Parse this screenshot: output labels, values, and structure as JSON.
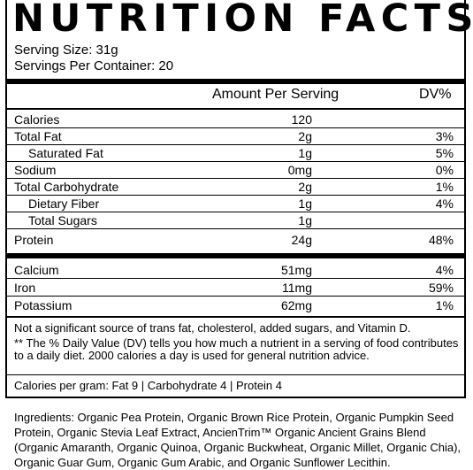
{
  "title": "NUTRITION FACTS",
  "serving_size": "Serving Size: 31g",
  "servings_per_container": "Servings Per Container: 20",
  "header": {
    "amount": "Amount Per Serving",
    "dv": "DV%"
  },
  "nutrients": [
    {
      "name": "Calories",
      "amount": "120",
      "dv": ""
    },
    {
      "name": "Total Fat",
      "amount": "2g",
      "dv": "3%"
    },
    {
      "name": "Saturated Fat",
      "amount": "1g",
      "dv": "5%"
    },
    {
      "name": "Sodium",
      "amount": "0mg",
      "dv": "0%"
    },
    {
      "name": "Total Carbohydrate",
      "amount": "2g",
      "dv": "1%"
    },
    {
      "name": "Dietary Fiber",
      "amount": "1g",
      "dv": "4%"
    },
    {
      "name": "Total Sugars",
      "amount": "1g",
      "dv": ""
    },
    {
      "name": "Protein",
      "amount": "24g",
      "dv": "48%"
    }
  ],
  "minerals": [
    {
      "name": "Calcium",
      "amount": "51mg",
      "dv": "4%"
    },
    {
      "name": "Iron",
      "amount": "11mg",
      "dv": "59%"
    },
    {
      "name": "Potassium",
      "amount": "62mg",
      "dv": "1%"
    }
  ],
  "notes": {
    "trans_fat": "Not a significant source of trans fat, cholesterol, added sugars, and Vitamin D.",
    "daily_value": "** The % Daily Value (DV) tells you how much a nutrient in a serving of food contributes to a daily diet. 2000 calories a day is used for general nutrition advice.",
    "calories_per_gram": "Calories per gram: Fat 9 | Carbohydrate 4 | Protein 4"
  },
  "ingredients": "Ingredients: Organic Pea Protein, Organic Brown Rice Protein, Organic Pumpkin Seed Protein, Organic Stevia Leaf Extract, AncienTrim™ Organic Ancient Grains Blend (Organic Amaranth, Organic Quinoa, Organic Buckwheat, Organic Millet, Organic Chia), Organic Guar Gum, Organic Gum Arabic, and Organic Sunflower Lecithin."
}
